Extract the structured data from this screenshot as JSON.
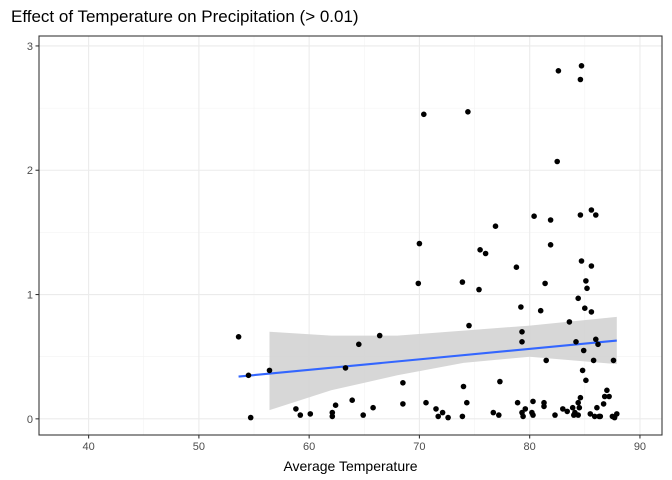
{
  "chart_data": {
    "type": "scatter",
    "title": "Effect of Temperature on Precipitation (> 0.01)",
    "xlabel": "Average Temperature",
    "ylabel": "",
    "xlim": [
      35.5,
      92
    ],
    "ylim": [
      -0.13,
      3.08
    ],
    "x_ticks": [
      40,
      50,
      60,
      70,
      80,
      90
    ],
    "y_ticks": [
      0,
      1,
      2,
      3
    ],
    "x_tick_labels": [
      "40",
      "50",
      "60",
      "70",
      "80",
      "90"
    ],
    "y_tick_labels": [
      "0",
      "1",
      "2",
      "3"
    ],
    "grid": true,
    "legend": "none",
    "point_color": "#000000",
    "line_color": "#3366FF",
    "ribbon_color": "#D3D3D3",
    "points": [
      [
        53.6,
        0.66
      ],
      [
        54.5,
        0.35
      ],
      [
        54.7,
        0.01
      ],
      [
        56.4,
        0.39
      ],
      [
        58.8,
        0.08
      ],
      [
        59.2,
        0.03
      ],
      [
        60.1,
        0.04
      ],
      [
        62.1,
        0.02
      ],
      [
        62.1,
        0.05
      ],
      [
        62.4,
        0.11
      ],
      [
        63.3,
        0.41
      ],
      [
        63.9,
        0.15
      ],
      [
        64.5,
        0.6
      ],
      [
        64.9,
        0.03
      ],
      [
        65.8,
        0.09
      ],
      [
        66.4,
        0.67
      ],
      [
        68.5,
        0.29
      ],
      [
        68.5,
        0.12
      ],
      [
        69.9,
        1.09
      ],
      [
        70.0,
        1.41
      ],
      [
        70.4,
        2.45
      ],
      [
        70.6,
        0.13
      ],
      [
        71.5,
        0.08
      ],
      [
        71.7,
        0.02
      ],
      [
        72.1,
        0.05
      ],
      [
        72.6,
        0.01
      ],
      [
        73.9,
        1.1
      ],
      [
        73.9,
        0.02
      ],
      [
        74.0,
        0.26
      ],
      [
        74.3,
        0.13
      ],
      [
        74.4,
        2.47
      ],
      [
        74.5,
        0.75
      ],
      [
        75.4,
        1.04
      ],
      [
        75.5,
        1.36
      ],
      [
        76.0,
        1.33
      ],
      [
        76.7,
        0.05
      ],
      [
        76.9,
        1.55
      ],
      [
        77.2,
        0.03
      ],
      [
        77.3,
        0.3
      ],
      [
        78.8,
        1.22
      ],
      [
        78.9,
        0.13
      ],
      [
        79.2,
        0.9
      ],
      [
        79.3,
        0.7
      ],
      [
        79.3,
        0.62
      ],
      [
        79.3,
        0.05
      ],
      [
        79.4,
        0.02
      ],
      [
        79.6,
        0.08
      ],
      [
        80.2,
        0.05
      ],
      [
        80.3,
        0.14
      ],
      [
        80.3,
        0.03
      ],
      [
        80.4,
        1.63
      ],
      [
        81.0,
        0.87
      ],
      [
        81.3,
        0.13
      ],
      [
        81.3,
        0.1
      ],
      [
        81.4,
        1.09
      ],
      [
        81.5,
        0.47
      ],
      [
        81.9,
        1.4
      ],
      [
        81.9,
        1.6
      ],
      [
        82.3,
        0.03
      ],
      [
        82.5,
        2.07
      ],
      [
        82.6,
        2.8
      ],
      [
        83.0,
        0.08
      ],
      [
        83.4,
        0.06
      ],
      [
        83.6,
        0.78
      ],
      [
        83.9,
        0.09
      ],
      [
        84.0,
        0.03
      ],
      [
        84.1,
        0.05
      ],
      [
        84.2,
        0.62
      ],
      [
        84.4,
        0.03
      ],
      [
        84.4,
        0.97
      ],
      [
        84.4,
        0.13
      ],
      [
        84.5,
        0.09
      ],
      [
        84.6,
        0.17
      ],
      [
        84.6,
        2.73
      ],
      [
        84.6,
        1.64
      ],
      [
        84.7,
        2.84
      ],
      [
        84.7,
        1.27
      ],
      [
        84.8,
        0.39
      ],
      [
        84.9,
        0.55
      ],
      [
        85.0,
        0.89
      ],
      [
        85.1,
        0.31
      ],
      [
        85.1,
        1.11
      ],
      [
        85.2,
        1.05
      ],
      [
        85.5,
        0.04
      ],
      [
        85.6,
        1.68
      ],
      [
        85.6,
        1.23
      ],
      [
        85.6,
        0.86
      ],
      [
        85.8,
        0.47
      ],
      [
        85.9,
        0.02
      ],
      [
        86.0,
        1.64
      ],
      [
        86.0,
        0.64
      ],
      [
        86.1,
        0.09
      ],
      [
        86.2,
        0.6
      ],
      [
        86.3,
        0.02
      ],
      [
        86.4,
        0.02
      ],
      [
        86.7,
        0.12
      ],
      [
        86.8,
        0.18
      ],
      [
        87.0,
        0.23
      ],
      [
        87.2,
        0.18
      ],
      [
        87.5,
        0.02
      ],
      [
        87.6,
        0.47
      ],
      [
        87.7,
        0.01
      ],
      [
        87.9,
        0.04
      ]
    ],
    "smooth": {
      "method": "linear",
      "x": [
        53.6,
        87.9
      ],
      "y": [
        0.34,
        0.63
      ],
      "ribbon_x": [
        56.4,
        62,
        68,
        74,
        80,
        87.9
      ],
      "ribbon_lower": [
        0.07,
        0.23,
        0.35,
        0.45,
        0.5,
        0.44
      ],
      "ribbon_upper": [
        0.7,
        0.67,
        0.67,
        0.71,
        0.75,
        0.82
      ]
    }
  }
}
